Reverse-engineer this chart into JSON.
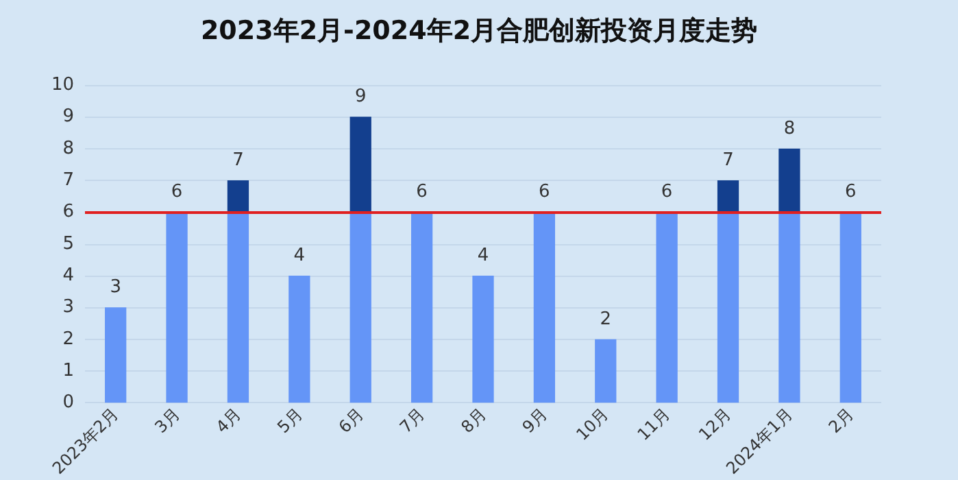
{
  "chart_data": {
    "type": "bar",
    "title": "2023年2月-2024年2月合肥创新投资月度走势",
    "categories": [
      "2023年2月",
      "3月",
      "4月",
      "5月",
      "6月",
      "7月",
      "8月",
      "9月",
      "10月",
      "11月",
      "12月",
      "2024年1月",
      "2月"
    ],
    "stacked": true,
    "series": [
      {
        "color": "#6495f7",
        "values": [
          3,
          6,
          6,
          4,
          6,
          6,
          4,
          6,
          2,
          6,
          6,
          6,
          6
        ]
      },
      {
        "color": "#133f8e",
        "values": [
          null,
          null,
          1,
          null,
          3,
          null,
          null,
          null,
          null,
          null,
          1,
          2,
          null
        ]
      }
    ],
    "totals": [
      "3",
      "6",
      "7",
      "4",
      "9",
      "6",
      "4",
      "6",
      "2",
      "6",
      "7",
      "8",
      "6"
    ],
    "ylim": [
      0,
      10
    ],
    "yticks": [
      0,
      1,
      2,
      3,
      4,
      5,
      6,
      7,
      8,
      9,
      10
    ],
    "grid": "y",
    "ref_lines": [
      {
        "axis": "y",
        "value": 6,
        "color": "#e02020"
      }
    ]
  }
}
